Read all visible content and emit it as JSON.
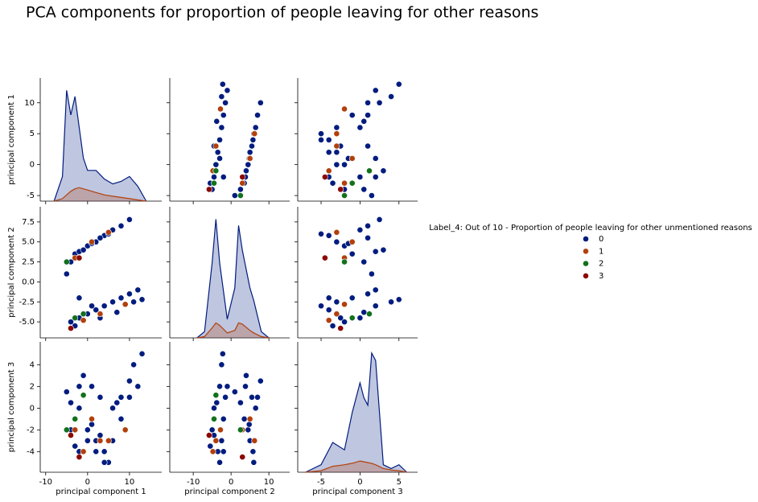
{
  "chart_data": {
    "type": "pairplot",
    "title": "PCA components for proportion of people leaving for other reasons",
    "variables": [
      "principal component 1",
      "principal component 2",
      "principal component 3"
    ],
    "xlims": [
      [
        -11.3,
        17.7
      ],
      [
        -16.2,
        15.5
      ],
      [
        -8.0,
        7.4
      ]
    ],
    "xticks": [
      [
        -10,
        0,
        10
      ],
      [
        -10,
        0,
        10
      ],
      [
        -5,
        0,
        5
      ]
    ],
    "ylims": [
      [
        -5.9,
        14.0
      ],
      [
        -7.0,
        9.4
      ],
      [
        -5.9,
        6.1
      ]
    ],
    "yticks": [
      [
        -5,
        0,
        5,
        10
      ],
      [
        {
          "value": -5,
          "label": "-5.0"
        },
        {
          "value": -2.5,
          "label": "-2.5"
        },
        {
          "value": 0,
          "label": "0.0"
        },
        {
          "value": 2.5,
          "label": "2.5"
        },
        {
          "value": 5,
          "label": "5.0"
        },
        {
          "value": 7.5,
          "label": "7.5"
        }
      ],
      [
        -4,
        -2,
        0,
        2,
        4
      ]
    ],
    "legend_title": "Label_4: Out of 10 - Proportion of people leaving for other unmentioned reasons",
    "series": [
      {
        "name": "0",
        "color": "#001c7f",
        "values": [
          [
            -5,
            -4,
            -3,
            -2,
            0,
            2,
            4,
            6,
            8,
            10,
            -1,
            1,
            3,
            5,
            -4,
            -2,
            0,
            2,
            4,
            6,
            8,
            10,
            12,
            13,
            -3,
            1,
            3,
            7,
            11,
            -2
          ],
          [
            1,
            2.5,
            3.5,
            3.8,
            4.5,
            5,
            5.8,
            6.5,
            7,
            7.8,
            4,
            4.8,
            5.5,
            6,
            -5,
            -4.5,
            -4,
            -3.5,
            -3,
            -2.5,
            -2,
            -1.5,
            -1,
            -2.2,
            -5.5,
            -3,
            -4.5,
            -3.8,
            -2.5,
            -2
          ],
          [
            1.5,
            0.5,
            -1,
            2,
            -2,
            -3,
            -4,
            0,
            1,
            2.5,
            3,
            -1.5,
            1,
            -5,
            -2,
            0,
            -3,
            -4,
            -5,
            -3,
            -1,
            1,
            2,
            5,
            -3.5,
            2,
            -2.5,
            0.5,
            4,
            -4
          ]
        ]
      },
      {
        "name": "1",
        "color": "#b1400d",
        "values": [
          [
            -3,
            1,
            5,
            -1,
            3,
            9
          ],
          [
            3,
            5,
            6.2,
            -4.8,
            -4,
            -2.8
          ],
          [
            -2,
            -1,
            -3,
            -4,
            -3,
            -2
          ]
        ]
      },
      {
        "name": "2",
        "color": "#12711c",
        "values": [
          [
            -5,
            -3,
            -1
          ],
          [
            2.5,
            -4.5,
            -4
          ],
          [
            -2,
            -1,
            1.2
          ]
        ]
      },
      {
        "name": "3",
        "color": "#8c0800",
        "values": [
          [
            -4,
            -2
          ],
          [
            -5.8,
            3
          ],
          [
            -2.5,
            -4.5
          ]
        ]
      }
    ],
    "kde": [
      {
        "x": [
          -8,
          -6,
          -5,
          -4,
          -3,
          -2,
          -1,
          0,
          2,
          4,
          6,
          8,
          10,
          12,
          14
        ],
        "ylim": [
          0,
          0.1
        ],
        "series": [
          {
            "values": [
              0,
              0.02,
              0.09,
              0.07,
              0.085,
              0.06,
              0.035,
              0.025,
              0.025,
              0.018,
              0.014,
              0.016,
              0.02,
              0.012,
              0
            ]
          },
          {
            "values": [
              0,
              0.002,
              0.005,
              0.008,
              0.01,
              0.011,
              0.01,
              0.009,
              0.007,
              0.005,
              0.004,
              0.003,
              0.002,
              0.001,
              0
            ]
          }
        ]
      },
      {
        "x": [
          -9,
          -7,
          -5,
          -4,
          -3,
          -1,
          1,
          2,
          3,
          5,
          6,
          8,
          10
        ],
        "ylim": [
          0,
          0.105
        ],
        "series": [
          {
            "values": [
              0,
              0.005,
              0.06,
              0.095,
              0.06,
              0.015,
              0.04,
              0.09,
              0.07,
              0.04,
              0.03,
              0.005,
              0
            ]
          },
          {
            "values": [
              0,
              0.001,
              0.008,
              0.012,
              0.01,
              0.004,
              0.006,
              0.012,
              0.011,
              0.006,
              0.004,
              0.001,
              0
            ]
          }
        ]
      },
      {
        "x": [
          -7,
          -5,
          -3.5,
          -2,
          -1,
          0,
          0.5,
          1,
          1.5,
          2,
          3,
          4,
          5,
          6
        ],
        "ylim": [
          0,
          0.175
        ],
        "series": [
          {
            "values": [
              0,
              0.01,
              0.04,
              0.03,
              0.08,
              0.12,
              0.1,
              0.09,
              0.16,
              0.15,
              0.01,
              0.005,
              0.01,
              0
            ]
          },
          {
            "values": [
              0,
              0.002,
              0.008,
              0.01,
              0.012,
              0.015,
              0.014,
              0.013,
              0.012,
              0.01,
              0.005,
              0.003,
              0.002,
              0
            ]
          }
        ]
      }
    ]
  }
}
